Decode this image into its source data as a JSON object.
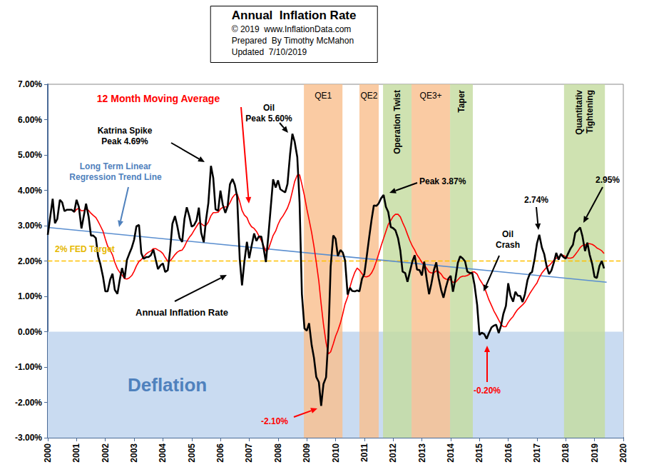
{
  "chart_data": {
    "type": "line",
    "title": "Annual  Inflation Rate",
    "subtitle": "© 2019  www.InflationData.com\nPrepared  By Timothy McMahon\nUpdated  7/10/2019",
    "x": [
      2000,
      2000.08,
      2000.17,
      2000.25,
      2000.33,
      2000.42,
      2000.5,
      2000.58,
      2000.67,
      2000.75,
      2000.83,
      2000.92,
      2001,
      2001.08,
      2001.17,
      2001.25,
      2001.33,
      2001.42,
      2001.5,
      2001.58,
      2001.67,
      2001.75,
      2001.83,
      2001.92,
      2002,
      2002.08,
      2002.17,
      2002.25,
      2002.33,
      2002.42,
      2002.5,
      2002.58,
      2002.67,
      2002.75,
      2002.83,
      2002.92,
      2003,
      2003.08,
      2003.17,
      2003.25,
      2003.33,
      2003.42,
      2003.5,
      2003.58,
      2003.67,
      2003.75,
      2003.83,
      2003.92,
      2004,
      2004.08,
      2004.17,
      2004.25,
      2004.33,
      2004.42,
      2004.5,
      2004.58,
      2004.67,
      2004.75,
      2004.83,
      2004.92,
      2005,
      2005.08,
      2005.17,
      2005.25,
      2005.33,
      2005.42,
      2005.5,
      2005.58,
      2005.67,
      2005.75,
      2005.83,
      2005.92,
      2006,
      2006.08,
      2006.17,
      2006.25,
      2006.33,
      2006.42,
      2006.5,
      2006.58,
      2006.67,
      2006.75,
      2006.83,
      2006.92,
      2007,
      2007.08,
      2007.17,
      2007.25,
      2007.33,
      2007.42,
      2007.5,
      2007.58,
      2007.67,
      2007.75,
      2007.83,
      2007.92,
      2008,
      2008.08,
      2008.17,
      2008.25,
      2008.33,
      2008.42,
      2008.5,
      2008.58,
      2008.67,
      2008.75,
      2008.83,
      2008.92,
      2009,
      2009.08,
      2009.17,
      2009.25,
      2009.33,
      2009.42,
      2009.5,
      2009.58,
      2009.67,
      2009.75,
      2009.83,
      2009.92,
      2010,
      2010.08,
      2010.17,
      2010.25,
      2010.33,
      2010.42,
      2010.5,
      2010.58,
      2010.67,
      2010.75,
      2010.83,
      2010.92,
      2011,
      2011.08,
      2011.17,
      2011.25,
      2011.33,
      2011.42,
      2011.5,
      2011.58,
      2011.67,
      2011.75,
      2011.83,
      2011.92,
      2012,
      2012.08,
      2012.17,
      2012.25,
      2012.33,
      2012.42,
      2012.5,
      2012.58,
      2012.67,
      2012.75,
      2012.83,
      2012.92,
      2013,
      2013.08,
      2013.17,
      2013.25,
      2013.33,
      2013.42,
      2013.5,
      2013.58,
      2013.67,
      2013.75,
      2013.83,
      2013.92,
      2014,
      2014.08,
      2014.17,
      2014.25,
      2014.33,
      2014.42,
      2014.5,
      2014.58,
      2014.67,
      2014.75,
      2014.83,
      2014.92,
      2015,
      2015.08,
      2015.17,
      2015.25,
      2015.33,
      2015.42,
      2015.5,
      2015.58,
      2015.67,
      2015.75,
      2015.83,
      2015.92,
      2016,
      2016.08,
      2016.17,
      2016.25,
      2016.33,
      2016.42,
      2016.5,
      2016.58,
      2016.67,
      2016.75,
      2016.83,
      2016.92,
      2017,
      2017.08,
      2017.17,
      2017.25,
      2017.33,
      2017.42,
      2017.5,
      2017.58,
      2017.67,
      2017.75,
      2017.83,
      2017.92,
      2018,
      2018.08,
      2018.17,
      2018.25,
      2018.33,
      2018.42,
      2018.5,
      2018.58,
      2018.67,
      2018.75,
      2018.83,
      2018.92,
      2019,
      2019.08,
      2019.17,
      2019.25,
      2019.33
    ],
    "series": [
      {
        "name": "Annual Inflation Rate",
        "color": "#000000",
        "values": [
          2.74,
          3.22,
          3.76,
          3.07,
          3.19,
          3.73,
          3.66,
          3.41,
          3.45,
          3.45,
          3.45,
          3.39,
          3.73,
          3.53,
          2.92,
          3.27,
          3.62,
          3.25,
          2.72,
          2.72,
          2.65,
          2.13,
          1.9,
          1.55,
          1.14,
          1.14,
          1.48,
          1.64,
          1.18,
          1.07,
          1.46,
          1.8,
          1.51,
          2.03,
          2.2,
          2.38,
          2.6,
          2.98,
          3.02,
          2.22,
          2.06,
          2.11,
          2.11,
          2.16,
          2.32,
          2.04,
          1.77,
          1.88,
          1.93,
          1.69,
          1.74,
          2.29,
          3.05,
          3.27,
          2.99,
          2.65,
          2.54,
          3.19,
          3.52,
          3.26,
          2.97,
          3.01,
          3.15,
          3.51,
          2.8,
          2.53,
          3.17,
          3.64,
          4.69,
          4.35,
          3.46,
          3.42,
          3.99,
          3.6,
          3.36,
          3.55,
          4.17,
          4.32,
          4.15,
          3.82,
          2.06,
          1.31,
          1.97,
          2.54,
          2.08,
          2.42,
          2.78,
          2.57,
          2.69,
          2.69,
          2.36,
          1.97,
          2.76,
          3.54,
          4.31,
          4.08,
          4.28,
          4.03,
          3.98,
          3.94,
          4.18,
          5.02,
          5.6,
          5.37,
          4.94,
          3.66,
          1.07,
          0.09,
          0.03,
          0.24,
          -0.38,
          -0.74,
          -1.28,
          -1.43,
          -2.1,
          -1.48,
          -1.29,
          -0.18,
          1.84,
          2.72,
          2.63,
          2.14,
          2.31,
          2.24,
          2.02,
          1.05,
          1.24,
          1.15,
          1.14,
          1.17,
          1.14,
          1.5,
          1.63,
          2.11,
          2.68,
          3.16,
          3.57,
          3.56,
          3.63,
          3.77,
          3.87,
          3.53,
          3.39,
          2.96,
          2.93,
          2.87,
          2.65,
          2.3,
          1.7,
          1.66,
          1.41,
          1.69,
          1.99,
          2.16,
          1.76,
          1.74,
          1.59,
          1.98,
          1.47,
          1.06,
          1.36,
          1.75,
          1.96,
          1.52,
          1.18,
          0.96,
          1.24,
          1.5,
          1.58,
          1.13,
          1.51,
          1.95,
          2.13,
          2.07,
          1.99,
          1.7,
          1.66,
          1.66,
          1.32,
          0.76,
          -0.09,
          -0.03,
          -0.07,
          -0.2,
          -0.04,
          0.12,
          0.17,
          0.2,
          -0.04,
          0.17,
          0.5,
          0.73,
          1.37,
          1.02,
          0.85,
          1.13,
          1.02,
          1.01,
          0.84,
          1.06,
          1.46,
          1.64,
          1.69,
          2.07,
          2.5,
          2.74,
          2.38,
          2.2,
          1.87,
          1.63,
          1.73,
          1.94,
          2.23,
          2.04,
          2.2,
          2.11,
          2.07,
          2.21,
          2.36,
          2.46,
          2.8,
          2.87,
          2.95,
          2.7,
          2.28,
          2.52,
          2.18,
          1.91,
          1.55,
          1.52,
          1.86,
          2.0,
          1.79
        ]
      },
      {
        "name": "12 Month Moving Average",
        "color": "#ff0000",
        "values": [
          null,
          null,
          null,
          null,
          null,
          null,
          null,
          null,
          null,
          null,
          null,
          3.38,
          3.46,
          3.49,
          3.42,
          3.43,
          3.47,
          3.43,
          3.35,
          3.29,
          3.23,
          3.12,
          2.99,
          2.84,
          2.62,
          2.42,
          2.3,
          2.17,
          1.96,
          1.78,
          1.68,
          1.6,
          1.5,
          1.49,
          1.52,
          1.59,
          1.71,
          1.86,
          1.99,
          2.04,
          2.11,
          2.2,
          2.25,
          2.28,
          2.35,
          2.35,
          2.31,
          2.27,
          2.21,
          2.1,
          1.99,
          2.0,
          2.08,
          2.18,
          2.25,
          2.29,
          2.31,
          2.41,
          2.55,
          2.67,
          2.75,
          2.86,
          2.98,
          3.08,
          3.06,
          3.0,
          3.01,
          3.1,
          3.28,
          3.37,
          3.37,
          3.38,
          3.47,
          3.52,
          3.53,
          3.54,
          3.65,
          3.8,
          3.88,
          3.9,
          3.68,
          3.43,
          3.3,
          3.23,
          3.07,
          2.97,
          2.92,
          2.84,
          2.72,
          2.58,
          2.43,
          2.28,
          2.34,
          2.53,
          2.72,
          2.85,
          3.03,
          3.17,
          3.27,
          3.38,
          3.5,
          3.7,
          3.97,
          4.25,
          4.43,
          4.44,
          4.17,
          3.84,
          3.48,
          3.17,
          2.8,
          2.41,
          1.96,
          1.42,
          0.78,
          0.21,
          -0.31,
          -0.63,
          -0.57,
          -0.35,
          -0.13,
          0.03,
          0.25,
          0.5,
          0.78,
          0.98,
          1.26,
          1.48,
          1.68,
          1.8,
          1.74,
          1.64,
          1.56,
          1.55,
          1.58,
          1.66,
          1.79,
          2.0,
          2.2,
          2.42,
          2.64,
          2.84,
          3.03,
          3.15,
          3.26,
          3.32,
          3.32,
          3.25,
          3.09,
          2.93,
          2.75,
          2.58,
          2.42,
          2.31,
          2.17,
          2.07,
          1.96,
          1.89,
          1.79,
          1.69,
          1.66,
          1.67,
          1.72,
          1.7,
          1.63,
          1.53,
          1.49,
          1.47,
          1.47,
          1.4,
          1.4,
          1.47,
          1.54,
          1.57,
          1.57,
          1.59,
          1.63,
          1.69,
          1.69,
          1.63,
          1.49,
          1.39,
          1.26,
          1.08,
          0.9,
          0.74,
          0.59,
          0.47,
          0.33,
          0.21,
          0.14,
          0.14,
          0.26,
          0.35,
          0.43,
          0.54,
          0.63,
          0.7,
          0.76,
          0.83,
          0.96,
          1.08,
          1.18,
          1.29,
          1.38,
          1.53,
          1.66,
          1.74,
          1.82,
          1.87,
          1.94,
          2.02,
          2.08,
          2.11,
          2.16,
          2.16,
          2.12,
          2.08,
          2.08,
          2.1,
          2.18,
          2.28,
          2.38,
          2.44,
          2.45,
          2.49,
          2.49,
          2.47,
          2.43,
          2.37,
          2.33,
          2.29,
          2.21
        ]
      },
      {
        "name": "Long Term Linear Regression Trend Line",
        "color": "#5b8fd0",
        "x": [
          2000,
          2019.42
        ],
        "values": [
          2.95,
          1.4
        ]
      },
      {
        "name": "2% FED Target",
        "color": "#ffc000",
        "line_style": "dashed",
        "x": [
          2000,
          2020
        ],
        "values": [
          2,
          2
        ]
      }
    ],
    "shaded_regions": [
      {
        "label": "Deflation",
        "x": [
          2000,
          2020
        ],
        "y": [
          -3,
          0
        ],
        "color": "#c9dbf1"
      },
      {
        "label": "QE1",
        "x": [
          2008.9,
          2010.24
        ],
        "y": [
          -3,
          7
        ],
        "color": "#f9bf8f"
      },
      {
        "label": "QE2",
        "x": [
          2010.83,
          2011.5
        ],
        "y": [
          -3,
          7
        ],
        "color": "#f9bf8f"
      },
      {
        "label": "Operation Twist",
        "x": [
          2011.65,
          2012.64
        ],
        "y": [
          -3,
          7
        ],
        "color": "#c4dca0"
      },
      {
        "label": "QE3+",
        "x": [
          2012.64,
          2013.98
        ],
        "y": [
          -3,
          7
        ],
        "color": "#f9bf8f"
      },
      {
        "label": "Taper",
        "x": [
          2013.98,
          2014.77
        ],
        "y": [
          -3,
          7
        ],
        "color": "#c4dca0"
      },
      {
        "label": "Quantitativ\nTightening",
        "x": [
          2017.94,
          2019.36
        ],
        "y": [
          -3,
          7
        ],
        "color": "#c4dca0"
      }
    ],
    "annotations": [
      "12 Month Moving Average",
      "Katrina Spike\nPeak 4.69%",
      "Oil\nPeak 5.60%",
      "Long Term Linear\nRegression Trend Line",
      "2% FED Target",
      "Annual Inflation Rate",
      "Peak 3.87%",
      "2.74%",
      "2.95%",
      "Oil\nCrash",
      "-2.10%",
      "-0.20%"
    ],
    "xlim": [
      2000,
      2020
    ],
    "xticks": [
      2000,
      2001,
      2002,
      2003,
      2004,
      2005,
      2006,
      2007,
      2008,
      2009,
      2010,
      2011,
      2012,
      2013,
      2014,
      2015,
      2016,
      2017,
      2018,
      2019,
      2020
    ],
    "ylim": [
      -3,
      7
    ],
    "yticks": [
      {
        "value": -3,
        "label": "-3.00%"
      },
      {
        "value": -2,
        "label": "-2.00%"
      },
      {
        "value": -1,
        "label": "-1.00%"
      },
      {
        "value": 0,
        "label": "0.00%"
      },
      {
        "value": 1,
        "label": "1.00%"
      },
      {
        "value": 2,
        "label": "2.00%"
      },
      {
        "value": 3,
        "label": "3.00%"
      },
      {
        "value": 4,
        "label": "4.00%"
      },
      {
        "value": 5,
        "label": "5.00%"
      },
      {
        "value": 6,
        "label": "6.00%"
      },
      {
        "value": 7,
        "label": "7.00%"
      }
    ],
    "grid": false
  }
}
